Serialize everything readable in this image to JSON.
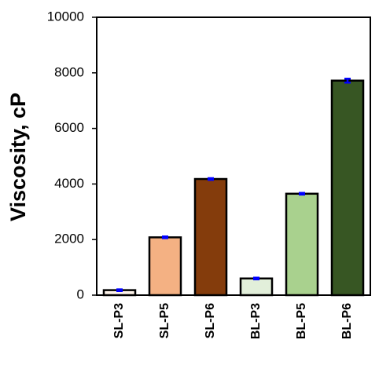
{
  "chart_data": {
    "type": "bar",
    "y_label": "Viscosity, cP",
    "categories": [
      "SL-P3",
      "SL-P5",
      "SL-P6",
      "BL-P3",
      "BL-P5",
      "BL-P6"
    ],
    "values": [
      180,
      2080,
      4180,
      600,
      3650,
      7720
    ],
    "errors": [
      30,
      30,
      30,
      30,
      30,
      70
    ],
    "colors": [
      "#fdf3ea",
      "#f4b183",
      "#843c0c",
      "#e2efda",
      "#a9d18e",
      "#375623"
    ],
    "error_color": "#0000ff",
    "ylim": [
      0,
      10000
    ],
    "yticks": [
      0,
      2000,
      4000,
      6000,
      8000,
      10000
    ],
    "grid": false
  }
}
